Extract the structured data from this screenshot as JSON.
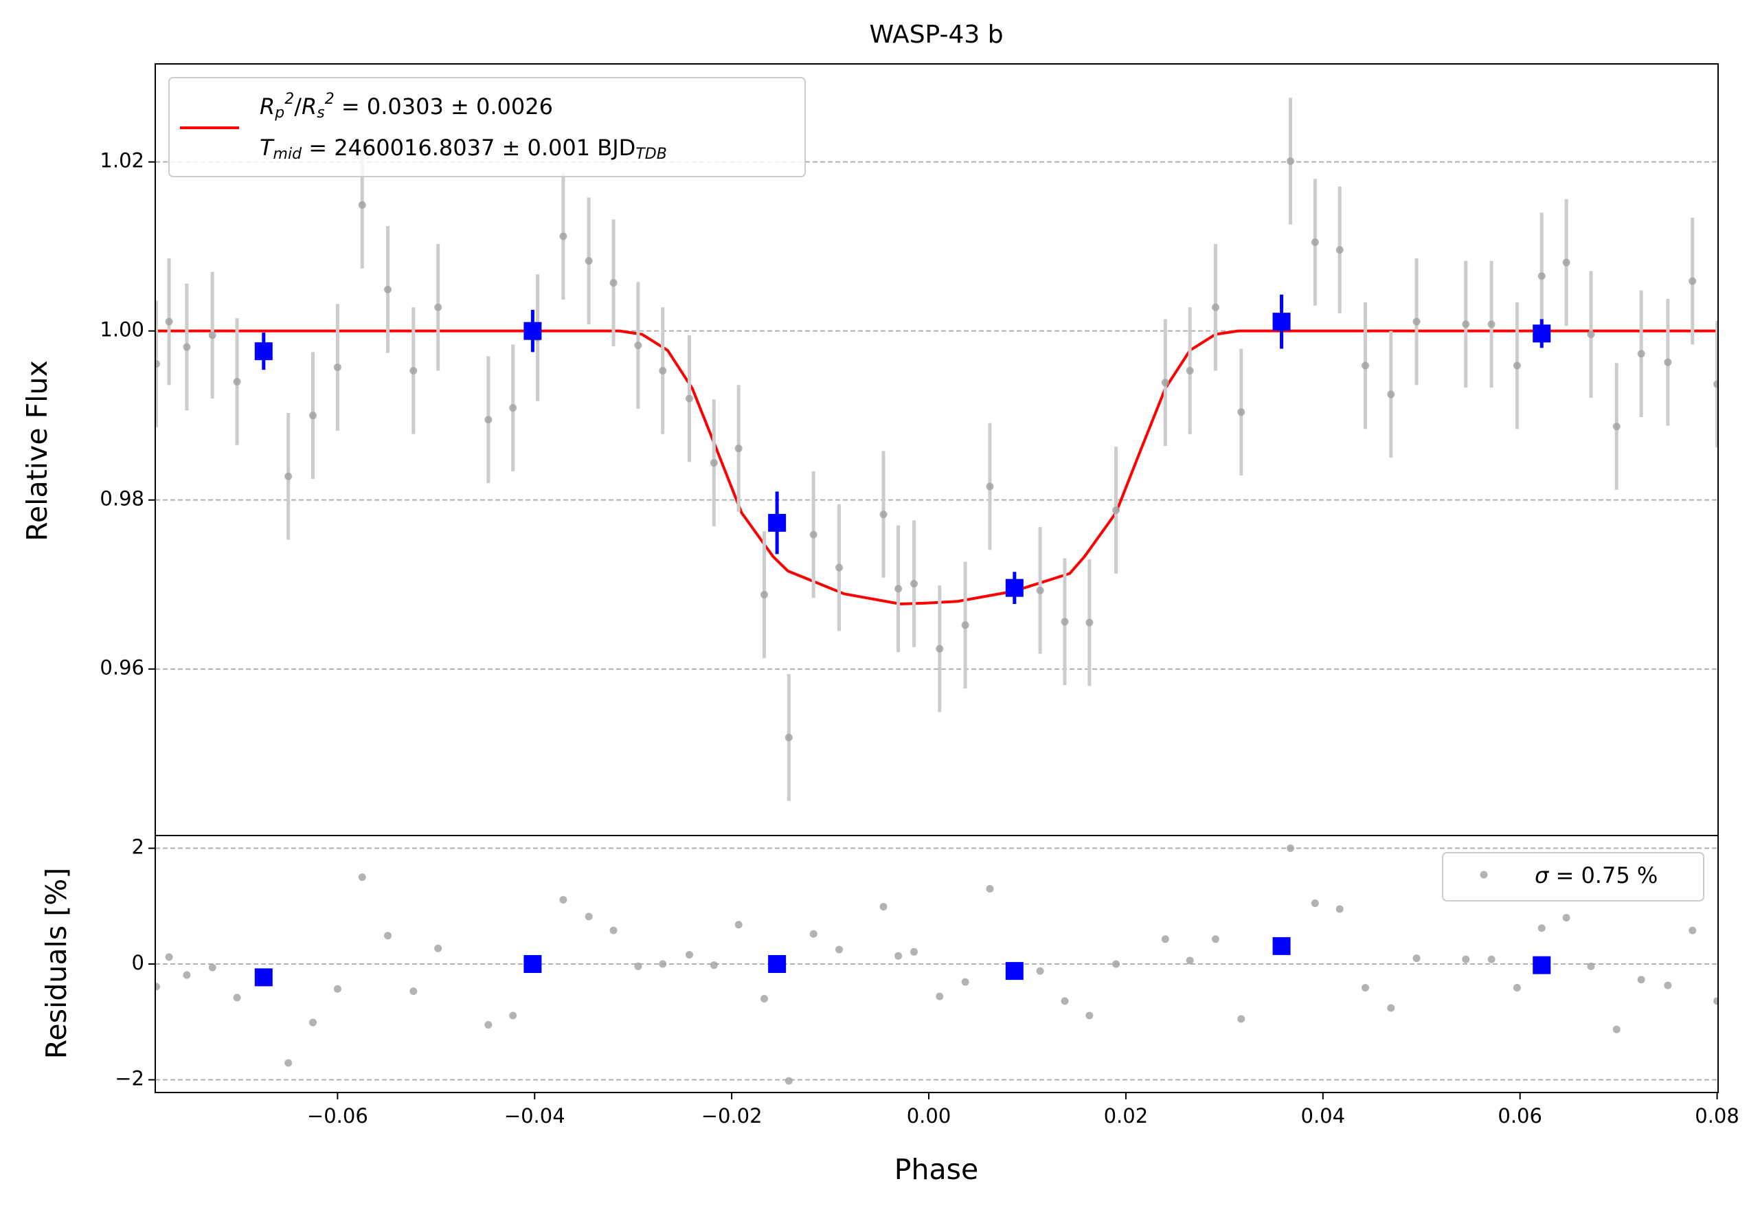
{
  "chart_data": [
    {
      "type": "scatter",
      "title": "WASP-43 b",
      "y_label": "Relative Flux",
      "xlim": [
        -0.0785,
        0.0801
      ],
      "ylim": [
        0.9403,
        1.0316
      ],
      "yticks": [
        0.96,
        0.98,
        {
          "value": 1,
          "label": "1.00"
        },
        1.02
      ],
      "grid": true,
      "legend": "upper left",
      "series": [
        {
          "type": "line",
          "color": "#ff0000",
          "name": [
            [
              {
                "text": "R",
                "style": "italic"
              },
              {
                "text": "p",
                "style": "sub"
              },
              {
                "text": "2",
                "style": "sup"
              },
              {
                "text": "/",
                "style": "normal"
              },
              {
                "text": "R",
                "style": "italic"
              },
              {
                "text": "s",
                "style": "sub"
              },
              {
                "text": "2",
                "style": "sup"
              },
              {
                "text": " = 0.0303 ± 0.0026",
                "style": "normal"
              }
            ],
            [
              {
                "text": "T",
                "style": "italic"
              },
              {
                "text": "mid",
                "style": "sub"
              },
              {
                "text": " = 2460016.8037 ± 0.001 BJD",
                "style": "normal"
              },
              {
                "text": "TDB",
                "style": "sub"
              }
            ]
          ],
          "x": [
            -0.0785,
            -0.0314,
            -0.0291,
            -0.0265,
            -0.024,
            -0.0215,
            -0.019,
            -0.0158,
            -0.0143,
            -0.0086,
            -0.0029,
            -0.0003,
            0.0029,
            0.0086,
            0.0143,
            0.0158,
            0.019,
            0.0215,
            0.024,
            0.0265,
            0.0291,
            0.0314,
            0.0801
          ],
          "values": [
            1.0,
            1.0,
            0.9996,
            0.9977,
            0.9932,
            0.9859,
            0.9785,
            0.9733,
            0.9716,
            0.9689,
            0.9677,
            0.9678,
            0.968,
            0.9692,
            0.9713,
            0.9733,
            0.9785,
            0.9859,
            0.9932,
            0.9977,
            0.9996,
            1.0,
            1.0
          ]
        },
        {
          "type": "errorbar",
          "color": "#a0a0a0",
          "ecolor": "#cccccc",
          "marker": "circle",
          "yerr": 0.0075,
          "x": [
            -0.0784,
            -0.0771,
            -0.0753,
            -0.0727,
            -0.0702,
            -0.065,
            -0.0625,
            -0.06,
            -0.0575,
            -0.0549,
            -0.0523,
            -0.0498,
            -0.0447,
            -0.0422,
            -0.0397,
            -0.0371,
            -0.0345,
            -0.032,
            -0.0295,
            -0.027,
            -0.0243,
            -0.0218,
            -0.0193,
            -0.0167,
            -0.0142,
            -0.0117,
            -0.0091,
            -0.0046,
            -0.0031,
            -0.0015,
            0.0011,
            0.0037,
            0.0062,
            0.0113,
            0.0138,
            0.0163,
            0.019,
            0.024,
            0.0265,
            0.0291,
            0.0317,
            0.0367,
            0.0392,
            0.0417,
            0.0443,
            0.0469,
            0.0495,
            0.0545,
            0.0571,
            0.0597,
            0.0622,
            0.0647,
            0.0672,
            0.0698,
            0.0723,
            0.075,
            0.0775,
            0.08
          ],
          "values": [
            0.9961,
            1.0011,
            0.9981,
            0.9995,
            0.994,
            0.9828,
            0.99,
            0.9957,
            1.0149,
            1.0049,
            0.9953,
            1.0028,
            0.9895,
            0.9909,
            0.9992,
            1.0112,
            1.0083,
            1.0057,
            0.9983,
            0.9953,
            0.992,
            0.9844,
            0.9861,
            0.9688,
            0.9519,
            0.9759,
            0.972,
            0.9783,
            0.9695,
            0.9701,
            0.9624,
            0.9652,
            0.9816,
            0.9693,
            0.9656,
            0.9655,
            0.9788,
            0.9939,
            0.9953,
            1.0028,
            0.9904,
            1.0201,
            1.0105,
            1.0096,
            0.9959,
            0.9925,
            1.0011,
            1.0008,
            1.0008,
            0.9959,
            1.0065,
            1.0081,
            0.9996,
            0.9887,
            0.9973,
            0.9963,
            1.0059,
            0.9937
          ]
        },
        {
          "type": "errorbar",
          "color": "#0000ff",
          "ecolor": "#0000ff",
          "marker": "square",
          "x": [
            -0.0675,
            -0.0402,
            -0.0154,
            0.0087,
            0.0358,
            0.0622
          ],
          "values": [
            0.9976,
            1.0,
            0.9773,
            0.9696,
            1.0011,
            0.9997
          ],
          "yerr": [
            0.0022,
            0.0025,
            0.0037,
            0.0019,
            0.0032,
            0.0017
          ]
        }
      ]
    },
    {
      "type": "scatter",
      "x_label": "Phase",
      "y_label": "Residuals [%]",
      "xlim": [
        -0.0785,
        0.0801
      ],
      "ylim": [
        -2.22,
        2.22
      ],
      "xticks": [
        {
          "value": -0.06,
          "label": "−0.06"
        },
        {
          "value": -0.04,
          "label": "−0.04"
        },
        {
          "value": -0.02,
          "label": "−0.02"
        },
        {
          "value": 0,
          "label": "0.00"
        },
        0.02,
        0.04,
        0.06,
        0.08
      ],
      "yticks": [
        {
          "value": -2,
          "label": "−2"
        },
        0,
        2
      ],
      "grid": true,
      "legend": "upper right",
      "series": [
        {
          "type": "points",
          "color": "#a0a0a0",
          "marker": "circle",
          "name": [
            [
              {
                "text": "σ",
                "style": "italic"
              },
              {
                "text": " = 0.75 %",
                "style": "normal"
              }
            ]
          ],
          "x": [
            -0.0784,
            -0.0771,
            -0.0753,
            -0.0727,
            -0.0702,
            -0.065,
            -0.0625,
            -0.06,
            -0.0575,
            -0.0549,
            -0.0523,
            -0.0498,
            -0.0447,
            -0.0422,
            -0.0397,
            -0.0371,
            -0.0345,
            -0.032,
            -0.0295,
            -0.027,
            -0.0243,
            -0.0218,
            -0.0193,
            -0.0167,
            -0.0142,
            -0.0117,
            -0.0091,
            -0.0046,
            -0.0031,
            -0.0015,
            0.0011,
            0.0037,
            0.0062,
            0.0113,
            0.0138,
            0.0163,
            0.019,
            0.024,
            0.0265,
            0.0291,
            0.0317,
            0.0367,
            0.0392,
            0.0417,
            0.0443,
            0.0469,
            0.0495,
            0.0545,
            0.0571,
            0.0597,
            0.0622,
            0.0647,
            0.0672,
            0.0698,
            0.0723,
            0.075,
            0.0775,
            0.08
          ],
          "values": [
            -0.39,
            0.12,
            -0.19,
            -0.06,
            -0.58,
            -1.71,
            -1.01,
            -0.43,
            1.5,
            0.49,
            -0.47,
            0.27,
            -1.05,
            -0.89,
            -0.02,
            1.11,
            0.82,
            0.58,
            -0.04,
            0.0,
            0.16,
            -0.02,
            0.68,
            -0.6,
            -2.02,
            0.52,
            0.25,
            0.99,
            0.14,
            0.21,
            -0.56,
            -0.31,
            1.3,
            -0.12,
            -0.64,
            -0.89,
            0.0,
            0.43,
            0.06,
            0.43,
            -0.95,
            2.0,
            1.05,
            0.95,
            -0.41,
            -0.76,
            0.1,
            0.08,
            0.08,
            -0.41,
            0.62,
            0.8,
            -0.04,
            -1.13,
            -0.27,
            -0.37,
            0.58,
            -0.64
          ]
        },
        {
          "type": "points",
          "color": "#0000ff",
          "marker": "square",
          "x": [
            -0.0675,
            -0.0402,
            -0.0154,
            0.0087,
            0.0358,
            0.0622
          ],
          "values": [
            -0.23,
            0.0,
            0.0,
            -0.12,
            0.31,
            -0.02
          ]
        }
      ]
    }
  ]
}
